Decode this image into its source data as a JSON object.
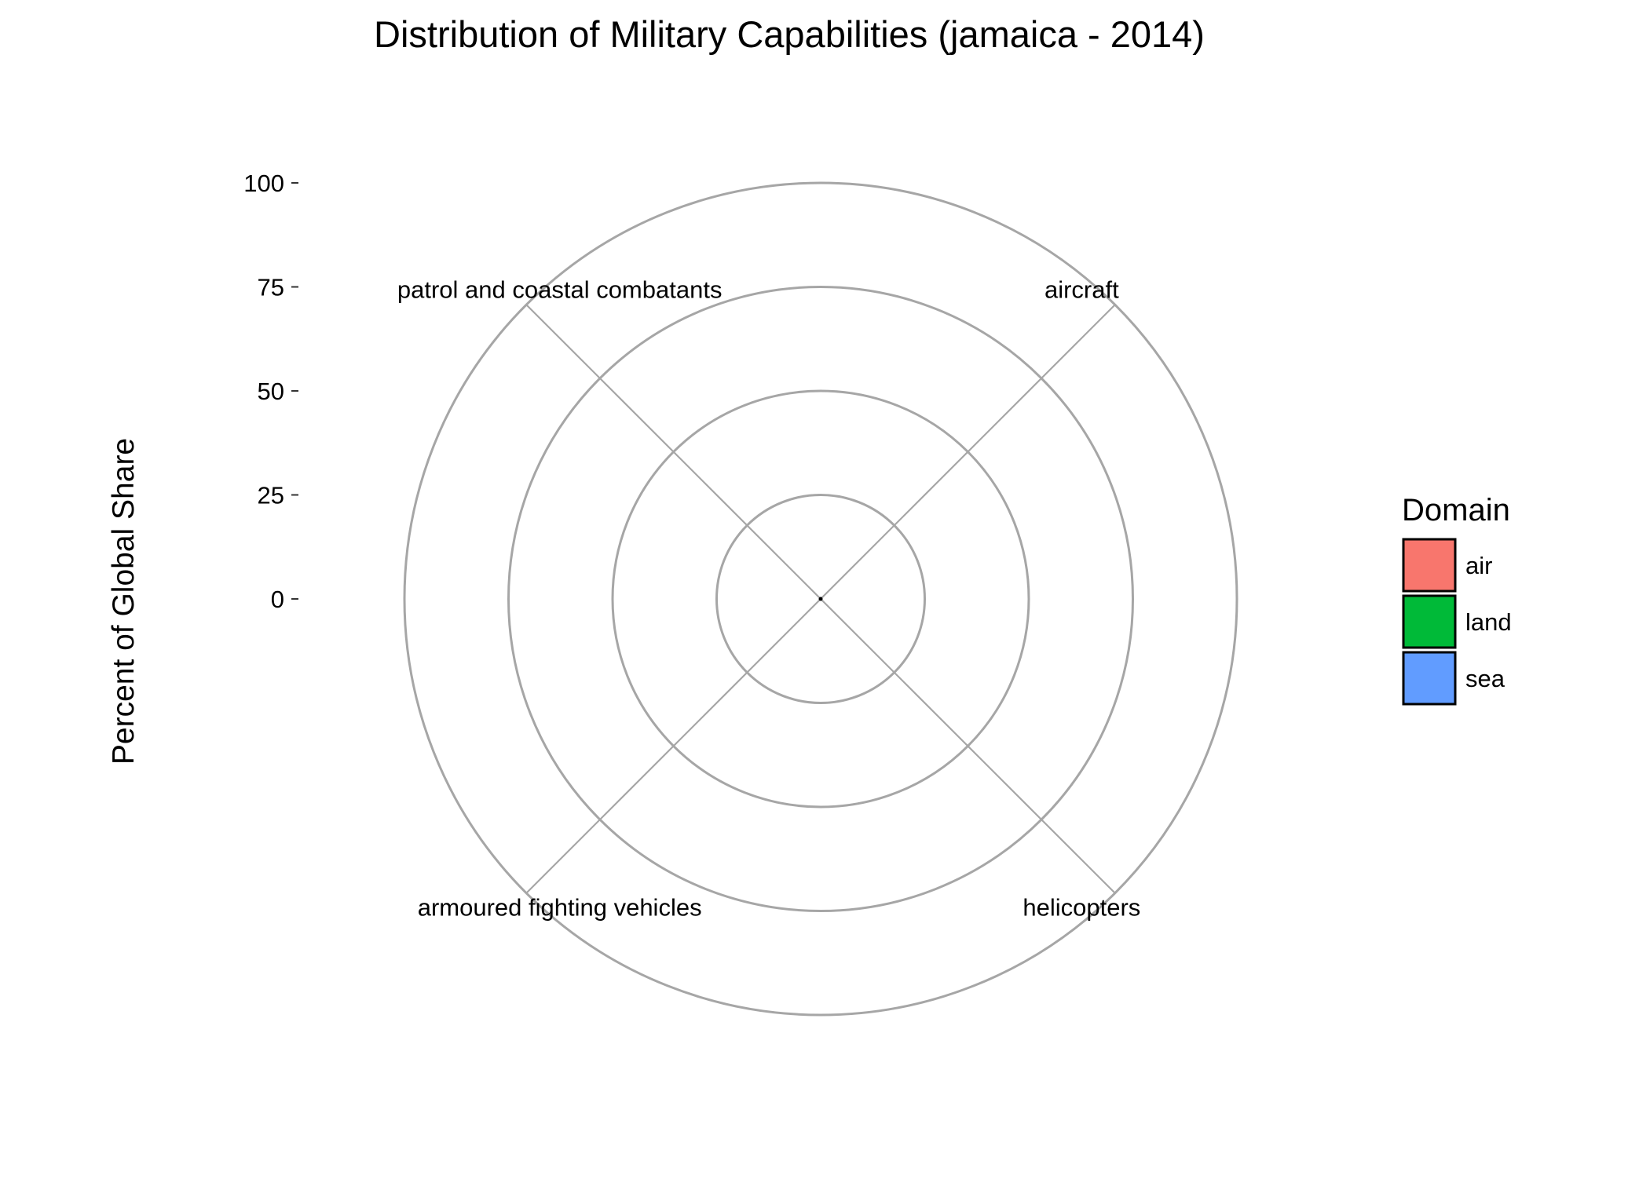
{
  "chart_data": {
    "type": "bar",
    "coord": "polar",
    "title": "Distribution of Military Capabilities (jamaica - 2014)",
    "xlabel": "",
    "ylabel": "Percent of Global Share",
    "categories": [
      "aircraft",
      "helicopters",
      "armoured fighting vehicles",
      "patrol and coastal combatants"
    ],
    "category_domains": [
      "air",
      "air",
      "land",
      "sea"
    ],
    "values": [
      0,
      0,
      0,
      0
    ],
    "ylim": [
      0,
      100
    ],
    "yticks": [
      0,
      25,
      50,
      75,
      100
    ],
    "ytick_labels": [
      "0",
      "25",
      "50",
      "75",
      "100"
    ],
    "grid": true,
    "legend": {
      "title": "Domain",
      "position": "right",
      "entries": [
        {
          "label": "air",
          "color": "#F8766D"
        },
        {
          "label": "land",
          "color": "#00BA38"
        },
        {
          "label": "sea",
          "color": "#619CFF"
        }
      ]
    }
  }
}
